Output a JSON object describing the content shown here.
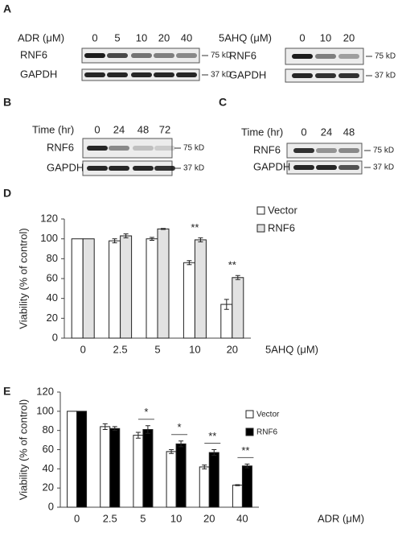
{
  "panels": [
    "A",
    "B",
    "C",
    "D",
    "E"
  ],
  "blots": [
    {
      "treatment": "ADR (μM)",
      "doses": [
        "0",
        "5",
        "10",
        "20",
        "40"
      ],
      "rows": [
        {
          "label": "RNF6",
          "size": "75 kD"
        },
        {
          "label": "GAPDH",
          "size": "37 kD"
        }
      ]
    },
    {
      "treatment": "5AHQ (μM)",
      "doses": [
        "0",
        "10",
        "20"
      ],
      "rows": [
        {
          "label": "RNF6",
          "size": "75 kD"
        },
        {
          "label": "GAPDH",
          "size": "37 kD"
        }
      ]
    },
    {
      "treatment": "Time (hr)",
      "doses": [
        "0",
        "24",
        "48",
        "72"
      ],
      "rows": [
        {
          "label": "RNF6",
          "size": "75 kD"
        },
        {
          "label": "GAPDH",
          "size": "37 kD"
        }
      ]
    },
    {
      "treatment": "Time (hr)",
      "doses": [
        "0",
        "24",
        "48"
      ],
      "rows": [
        {
          "label": "RNF6",
          "size": "75 kD"
        },
        {
          "label": "GAPDH",
          "size": "37 kD"
        }
      ]
    }
  ],
  "chart_data": [
    {
      "type": "bar",
      "y_label": "Viability (% of control)",
      "x_label": "5AHQ (μM)",
      "categories": [
        "0",
        "2.5",
        "5",
        "10",
        "20"
      ],
      "series": [
        {
          "name": "Vector",
          "color": "#ffffff",
          "values": [
            100,
            98,
            100,
            76,
            34
          ],
          "errors": [
            0,
            2,
            1.5,
            2,
            5
          ]
        },
        {
          "name": "RNF6",
          "color": "#e2e2e2",
          "values": [
            100,
            103,
            110,
            99,
            61
          ],
          "errors": [
            0,
            2,
            0.5,
            2,
            2
          ]
        }
      ],
      "significance": [
        null,
        null,
        null,
        "**",
        "**"
      ],
      "ylim": [
        0,
        120
      ],
      "yticks": [
        0,
        20,
        40,
        60,
        80,
        100,
        120
      ],
      "grid": false
    },
    {
      "type": "bar",
      "y_label": "Viability (% of control)",
      "x_label": "ADR (μM)",
      "categories": [
        "0",
        "2.5",
        "5",
        "10",
        "20",
        "40"
      ],
      "series": [
        {
          "name": "Vector",
          "color": "#ffffff",
          "values": [
            100,
            84,
            75,
            58,
            42,
            23
          ],
          "errors": [
            0,
            3,
            3,
            2,
            2,
            0.5
          ]
        },
        {
          "name": "RNF6",
          "color": "#000000",
          "values": [
            100,
            82,
            81,
            66,
            57,
            43
          ],
          "errors": [
            0,
            2,
            4,
            3,
            3,
            2
          ]
        }
      ],
      "significance": [
        null,
        null,
        "*",
        "*",
        "**",
        "**"
      ],
      "ylim": [
        0,
        120
      ],
      "yticks": [
        0,
        20,
        40,
        60,
        80,
        100,
        120
      ],
      "grid": false
    }
  ]
}
